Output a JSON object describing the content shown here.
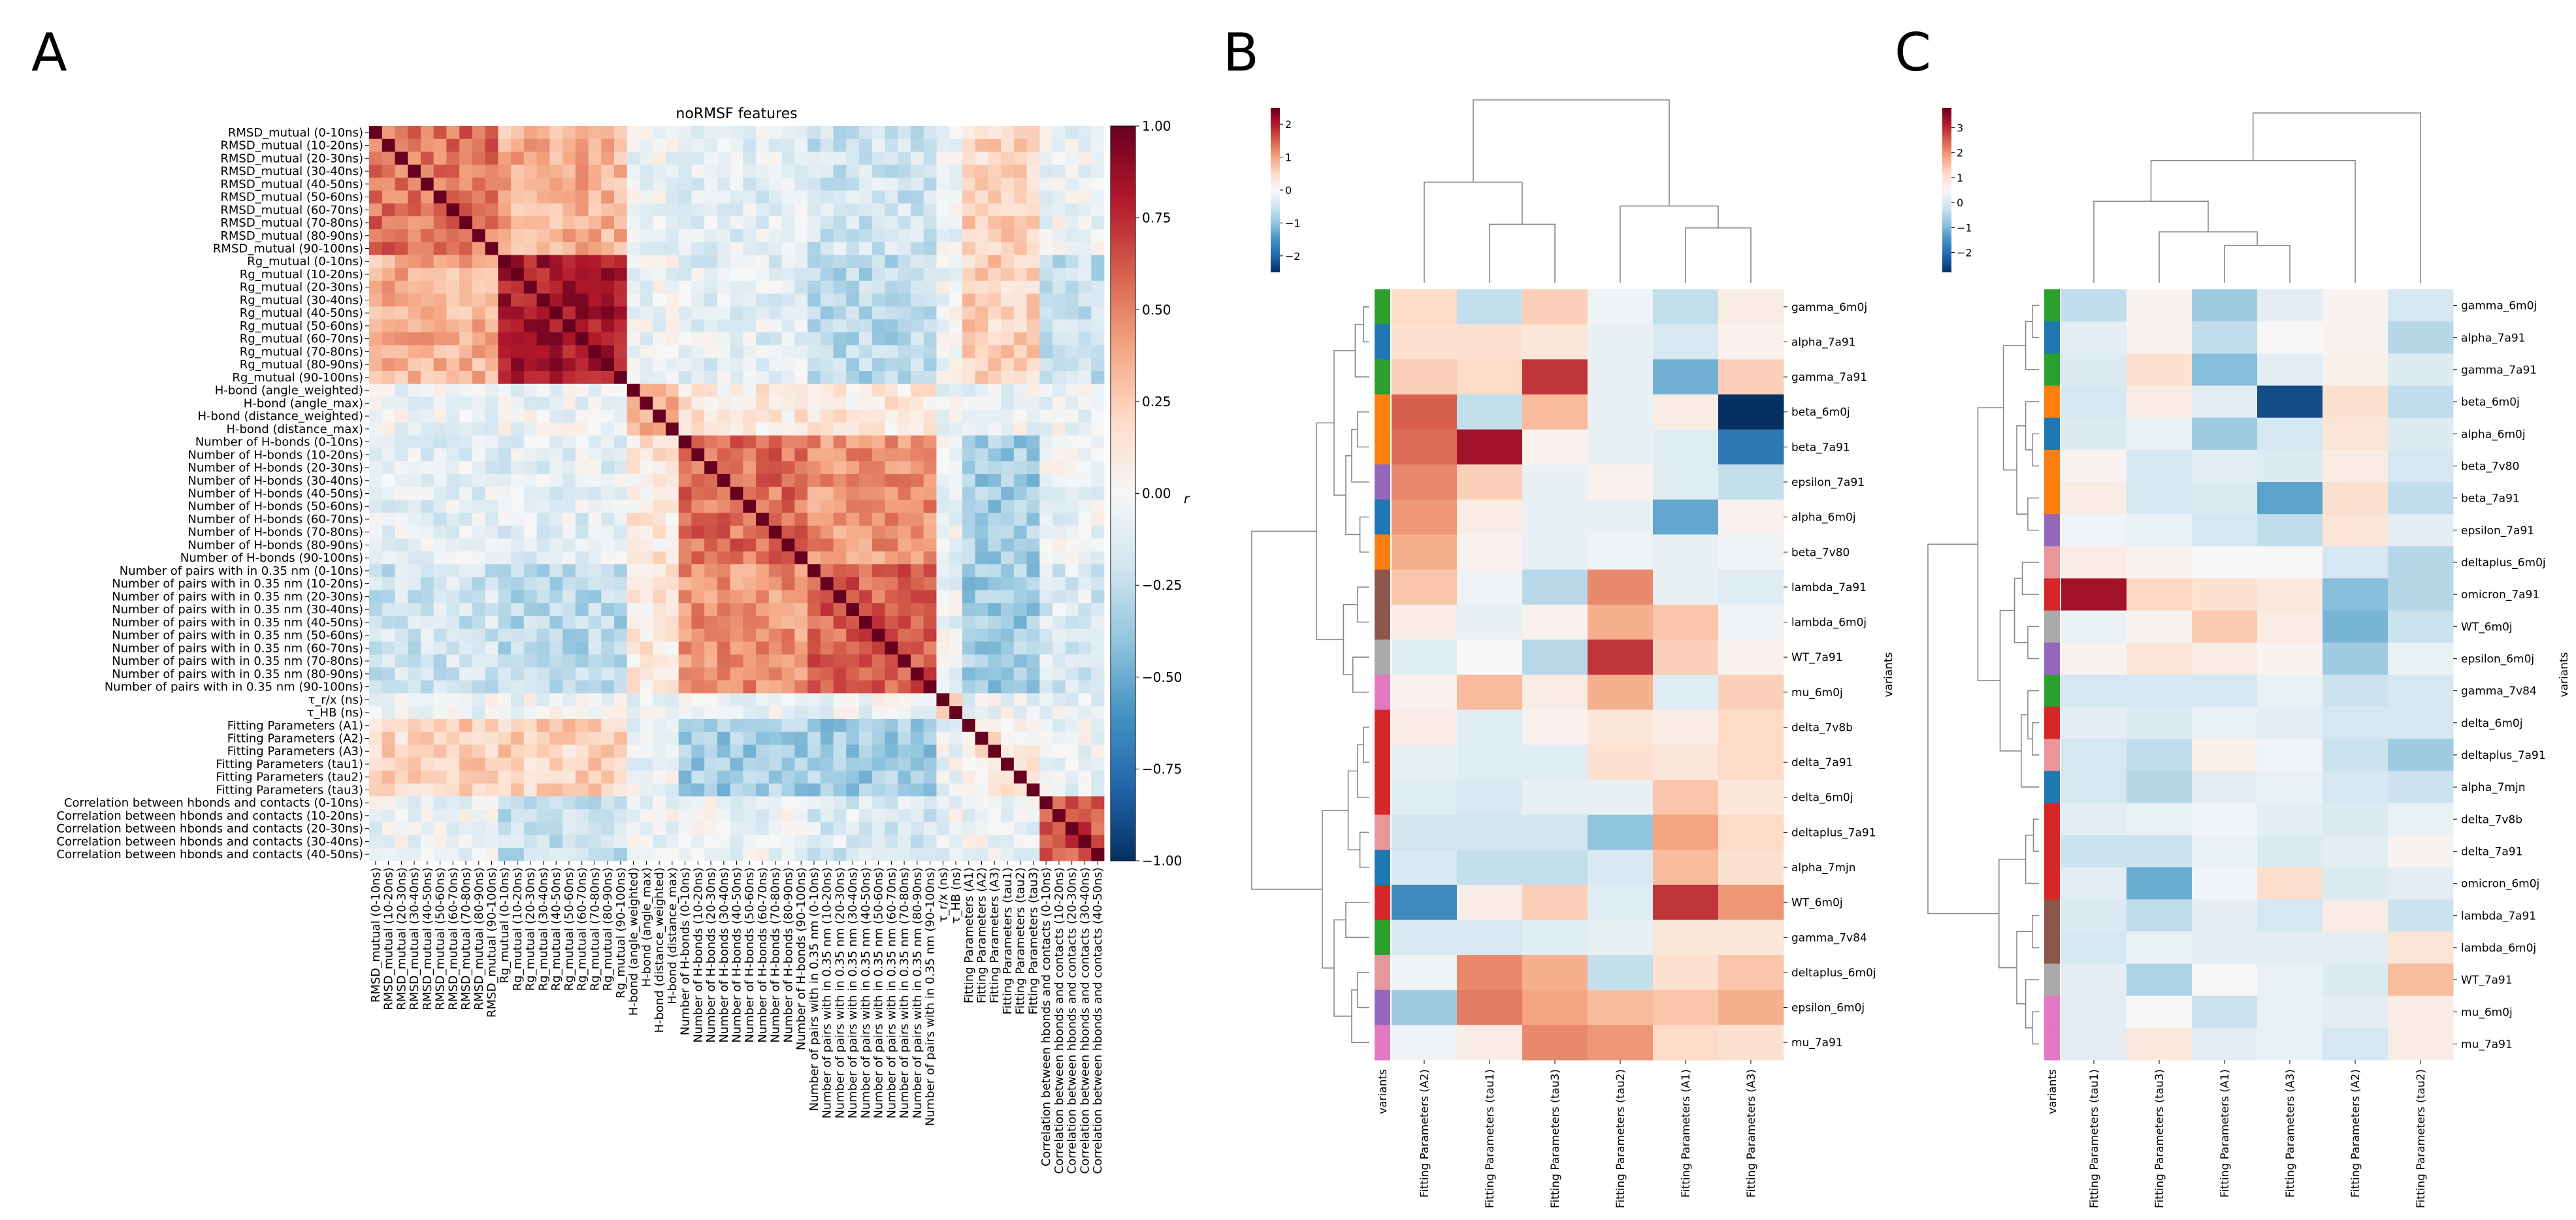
{
  "panels": {
    "A": "A",
    "B": "B",
    "C": "C"
  },
  "chart_data": [
    {
      "type": "heatmap",
      "panel": "A",
      "title": "noRMSF features",
      "colorbar_label": "r",
      "colorbar_ticks": [
        1.0,
        0.75,
        0.5,
        0.25,
        0.0,
        -0.25,
        -0.5,
        -0.75,
        -1.0
      ],
      "colorbar_tick_labels": [
        "1.00",
        "0.75",
        "0.50",
        "0.25",
        "0.00",
        "−0.25",
        "−0.50",
        "−0.75",
        "−1.00"
      ],
      "vmin": -1,
      "vmax": 1,
      "features": [
        "RMSD_mutual (0-10ns)",
        "RMSD_mutual (10-20ns)",
        "RMSD_mutual (20-30ns)",
        "RMSD_mutual (30-40ns)",
        "RMSD_mutual (40-50ns)",
        "RMSD_mutual (50-60ns)",
        "RMSD_mutual (60-70ns)",
        "RMSD_mutual (70-80ns)",
        "RMSD_mutual (80-90ns)",
        "RMSD_mutual (90-100ns)",
        "Rg_mutual (0-10ns)",
        "Rg_mutual (10-20ns)",
        "Rg_mutual (20-30ns)",
        "Rg_mutual (30-40ns)",
        "Rg_mutual (40-50ns)",
        "Rg_mutual (50-60ns)",
        "Rg_mutual (60-70ns)",
        "Rg_mutual (70-80ns)",
        "Rg_mutual (80-90ns)",
        "Rg_mutual (90-100ns)",
        "H-bond (angle_weighted)",
        "H-bond (angle_max)",
        "H-bond (distance_weighted)",
        "H-bond (distance_max)",
        "Number of H-bonds (0-10ns)",
        "Number of H-bonds (10-20ns)",
        "Number of H-bonds (20-30ns)",
        "Number of H-bonds (30-40ns)",
        "Number of H-bonds (40-50ns)",
        "Number of H-bonds (50-60ns)",
        "Number of H-bonds (60-70ns)",
        "Number of H-bonds (70-80ns)",
        "Number of H-bonds (80-90ns)",
        "Number of H-bonds (90-100ns)",
        "Number of pairs with in 0.35 nm (0-10ns)",
        "Number of pairs with in 0.35 nm (10-20ns)",
        "Number of pairs with in 0.35 nm (20-30ns)",
        "Number of pairs with in 0.35 nm (30-40ns)",
        "Number of pairs with in 0.35 nm (40-50ns)",
        "Number of pairs with in 0.35 nm (50-60ns)",
        "Number of pairs with in 0.35 nm (60-70ns)",
        "Number of pairs with in 0.35 nm (70-80ns)",
        "Number of pairs with in 0.35 nm (80-90ns)",
        "Number of pairs with in 0.35 nm (90-100ns)",
        "τ_r/x (ns)",
        "τ_HB (ns)",
        "Fitting Parameters (A1)",
        "Fitting Parameters (A2)",
        "Fitting Parameters (A3)",
        "Fitting Parameters (tau1)",
        "Fitting Parameters (tau2)",
        "Fitting Parameters (tau3)",
        "Correlation between hbonds and contacts (0-10ns)",
        "Correlation between hbonds and contacts (10-20ns)",
        "Correlation between hbonds and contacts (20-30ns)",
        "Correlation between hbonds and contacts (30-40ns)",
        "Correlation between hbonds and contacts (40-50ns)"
      ],
      "label_grey_indices": [
        1,
        4,
        5,
        8,
        18,
        20,
        23,
        26,
        31,
        43,
        47,
        50,
        53,
        55
      ],
      "blocks": [
        {
          "range": [
            0,
            9
          ],
          "within": 0.55
        },
        {
          "range": [
            10,
            19
          ],
          "within": 0.82
        },
        {
          "range": [
            20,
            23
          ],
          "within": 0.35
        },
        {
          "range": [
            24,
            33
          ],
          "within": 0.55
        },
        {
          "range": [
            34,
            43
          ],
          "within": 0.6
        },
        {
          "range": [
            44,
            45
          ],
          "within": 0.2
        },
        {
          "range": [
            46,
            51
          ],
          "within": 0.1
        },
        {
          "range": [
            52,
            56
          ],
          "within": 0.65
        }
      ],
      "between_blocks": [
        {
          "a": [
            0,
            9
          ],
          "b": [
            10,
            19
          ],
          "r": 0.35
        },
        {
          "a": [
            0,
            9
          ],
          "b": [
            24,
            33
          ],
          "r": -0.1
        },
        {
          "a": [
            0,
            9
          ],
          "b": [
            34,
            43
          ],
          "r": -0.2
        },
        {
          "a": [
            10,
            19
          ],
          "b": [
            24,
            33
          ],
          "r": -0.1
        },
        {
          "a": [
            10,
            19
          ],
          "b": [
            34,
            43
          ],
          "r": -0.28
        },
        {
          "a": [
            10,
            19
          ],
          "b": [
            52,
            56
          ],
          "r": -0.22
        },
        {
          "a": [
            24,
            33
          ],
          "b": [
            34,
            43
          ],
          "r": 0.45
        },
        {
          "a": [
            20,
            23
          ],
          "b": [
            24,
            43
          ],
          "r": 0.1
        },
        {
          "a": [
            46,
            51
          ],
          "b": [
            0,
            19
          ],
          "r": 0.22
        },
        {
          "a": [
            46,
            51
          ],
          "b": [
            24,
            43
          ],
          "r": -0.35
        },
        {
          "a": [
            34,
            43
          ],
          "b": [
            52,
            56
          ],
          "r": -0.15
        }
      ]
    },
    {
      "type": "heatmap",
      "panel": "B",
      "y_label": "variants",
      "col_color_label": "variants",
      "colorbar_ticks": [
        2,
        1,
        0,
        -1,
        -2
      ],
      "colorbar_tick_labels": [
        "2",
        "1",
        "0",
        "−1",
        "−2"
      ],
      "vmin": -2.5,
      "vmax": 2.5,
      "columns": [
        "Fitting Parameters (A2)",
        "Fitting Parameters (tau1)",
        "Fitting Parameters (tau3)",
        "Fitting Parameters (tau2)",
        "Fitting Parameters (A1)",
        "Fitting Parameters (A3)"
      ],
      "rows": [
        "gamma_6m0j",
        "alpha_7a91",
        "gamma_7a91",
        "beta_6m0j",
        "beta_7a91",
        "epsilon_7a91",
        "alpha_6m0j",
        "beta_7v80",
        "lambda_7a91",
        "lambda_6m0j",
        "WT_7a91",
        "mu_6m0j",
        "delta_7v8b",
        "delta_7a91",
        "delta_6m0j",
        "deltaplus_7a91",
        "alpha_7mjn",
        "WT_6m0j",
        "gamma_7v84",
        "deltaplus_6m0j",
        "epsilon_6m0j",
        "mu_7a91"
      ],
      "row_colors": [
        "#2ca02c",
        "#1f77b4",
        "#2ca02c",
        "#ff7f0e",
        "#ff7f0e",
        "#9467bd",
        "#1f77b4",
        "#ff7f0e",
        "#8c564b",
        "#8c564b",
        "#aaaaaa",
        "#e377c2",
        "#d62728",
        "#d62728",
        "#d62728",
        "#e7969c",
        "#1f77b4",
        "#d62728",
        "#2ca02c",
        "#e7969c",
        "#9467bd",
        "#e377c2"
      ],
      "values": [
        [
          0.5,
          -0.6,
          0.6,
          -0.1,
          -0.6,
          0.2
        ],
        [
          0.4,
          0.4,
          0.3,
          -0.2,
          -0.4,
          0.1
        ],
        [
          0.6,
          0.5,
          1.8,
          -0.2,
          -1.2,
          0.6
        ],
        [
          1.5,
          -0.6,
          0.8,
          -0.2,
          0.2,
          -2.5
        ],
        [
          1.4,
          2.1,
          0.1,
          -0.2,
          -0.3,
          -1.8
        ],
        [
          1.2,
          0.6,
          -0.2,
          0.1,
          -0.3,
          -0.6
        ],
        [
          1.1,
          0.2,
          -0.2,
          -0.2,
          -1.3,
          0.1
        ],
        [
          0.9,
          0.1,
          -0.2,
          -0.1,
          -0.2,
          -0.1
        ],
        [
          0.7,
          -0.1,
          -0.7,
          1.2,
          -0.2,
          -0.3
        ],
        [
          0.2,
          -0.2,
          0.1,
          0.9,
          0.7,
          -0.1
        ],
        [
          -0.3,
          0.0,
          -0.7,
          1.8,
          0.6,
          0.1
        ],
        [
          0.1,
          0.8,
          0.2,
          0.9,
          -0.3,
          0.6
        ],
        [
          0.2,
          -0.3,
          0.1,
          0.3,
          0.2,
          0.5
        ],
        [
          -0.2,
          -0.3,
          -0.3,
          0.4,
          0.3,
          0.5
        ],
        [
          -0.3,
          -0.4,
          -0.2,
          -0.2,
          0.7,
          0.3
        ],
        [
          -0.5,
          -0.5,
          -0.5,
          -1.0,
          1.0,
          0.5
        ],
        [
          -0.4,
          -0.6,
          -0.6,
          -0.4,
          0.8,
          0.4
        ],
        [
          -1.6,
          0.2,
          0.6,
          -0.3,
          1.8,
          1.1
        ],
        [
          -0.4,
          -0.4,
          -0.3,
          -0.2,
          0.3,
          0.3
        ],
        [
          -0.1,
          1.2,
          0.9,
          -0.6,
          0.4,
          0.7
        ],
        [
          -0.9,
          1.3,
          1.0,
          0.8,
          0.7,
          0.9
        ],
        [
          -0.1,
          0.2,
          1.2,
          1.1,
          0.5,
          0.4
        ]
      ]
    },
    {
      "type": "heatmap",
      "panel": "C",
      "y_label": "variants",
      "col_color_label": "variants",
      "colorbar_ticks": [
        3,
        2,
        1,
        0,
        -1,
        -2
      ],
      "colorbar_tick_labels": [
        "3",
        "2",
        "1",
        "0",
        "−1",
        "−2"
      ],
      "vmin": -2.8,
      "vmax": 3.8,
      "columns": [
        "Fitting Parameters (tau1)",
        "Fitting Parameters (tau3)",
        "Fitting Parameters (A1)",
        "Fitting Parameters (A3)",
        "Fitting Parameters (A2)",
        "Fitting Parameters (tau2)"
      ],
      "rows": [
        "gamma_6m0j",
        "alpha_7a91",
        "gamma_7a91",
        "beta_6m0j",
        "alpha_6m0j",
        "beta_7v80",
        "beta_7a91",
        "epsilon_7a91",
        "deltaplus_6m0j",
        "omicron_7a91",
        "WT_6m0j",
        "epsilon_6m0j",
        "gamma_7v84",
        "delta_6m0j",
        "deltaplus_7a91",
        "alpha_7mjn",
        "delta_7v8b",
        "delta_7a91",
        "omicron_6m0j",
        "lambda_7a91",
        "lambda_6m0j",
        "WT_7a91",
        "mu_6m0j",
        "mu_7a91"
      ],
      "row_colors": [
        "#2ca02c",
        "#1f77b4",
        "#2ca02c",
        "#ff7f0e",
        "#1f77b4",
        "#ff7f0e",
        "#ff7f0e",
        "#9467bd",
        "#e7969c",
        "#d62728",
        "#aaaaaa",
        "#9467bd",
        "#2ca02c",
        "#d62728",
        "#e7969c",
        "#1f77b4",
        "#d62728",
        "#d62728",
        "#d62728",
        "#8c564b",
        "#8c564b",
        "#aaaaaa",
        "#e377c2",
        "#e377c2"
      ],
      "values": [
        [
          -0.7,
          0.1,
          -1.0,
          -0.3,
          0.1,
          -0.5
        ],
        [
          -0.3,
          0.1,
          -0.7,
          0.0,
          0.1,
          -0.8
        ],
        [
          -0.4,
          0.6,
          -1.2,
          -0.3,
          0.2,
          -0.4
        ],
        [
          -0.5,
          0.3,
          -0.3,
          -2.5,
          0.6,
          -0.7
        ],
        [
          -0.4,
          -0.2,
          -1.0,
          -0.5,
          0.5,
          -0.4
        ],
        [
          0.1,
          -0.5,
          -0.3,
          -0.4,
          0.3,
          -0.5
        ],
        [
          0.3,
          -0.5,
          -0.4,
          -1.5,
          0.6,
          -0.7
        ],
        [
          -0.1,
          -0.2,
          -0.5,
          -0.7,
          0.5,
          -0.3
        ],
        [
          0.3,
          0.1,
          0.0,
          0.0,
          -0.5,
          -0.8
        ],
        [
          3.2,
          0.8,
          0.6,
          0.4,
          -1.2,
          -0.8
        ],
        [
          -0.2,
          0.1,
          1.0,
          0.3,
          -1.3,
          -0.6
        ],
        [
          0.1,
          0.5,
          0.3,
          0.1,
          -1.0,
          -0.2
        ],
        [
          -0.5,
          -0.5,
          -0.5,
          -0.2,
          -0.6,
          -0.5
        ],
        [
          -0.3,
          -0.4,
          -0.2,
          -0.3,
          -0.5,
          -0.5
        ],
        [
          -0.5,
          -0.7,
          0.2,
          -0.1,
          -0.6,
          -1.0
        ],
        [
          -0.5,
          -0.8,
          -0.3,
          -0.2,
          -0.5,
          -0.6
        ],
        [
          -0.3,
          -0.2,
          -0.1,
          -0.3,
          -0.4,
          -0.2
        ],
        [
          -0.6,
          -0.6,
          -0.2,
          -0.4,
          -0.3,
          0.1
        ],
        [
          -0.3,
          -1.4,
          -0.1,
          0.7,
          -0.4,
          -0.3
        ],
        [
          -0.4,
          -0.7,
          -0.3,
          -0.5,
          0.3,
          -0.6
        ],
        [
          -0.5,
          -0.2,
          -0.3,
          -0.3,
          -0.3,
          0.5
        ],
        [
          -0.3,
          -0.9,
          0.0,
          -0.2,
          -0.4,
          1.2
        ],
        [
          -0.3,
          0.0,
          -0.6,
          -0.2,
          -0.3,
          0.3
        ],
        [
          -0.3,
          0.4,
          -0.3,
          -0.2,
          -0.5,
          0.3
        ]
      ]
    }
  ]
}
